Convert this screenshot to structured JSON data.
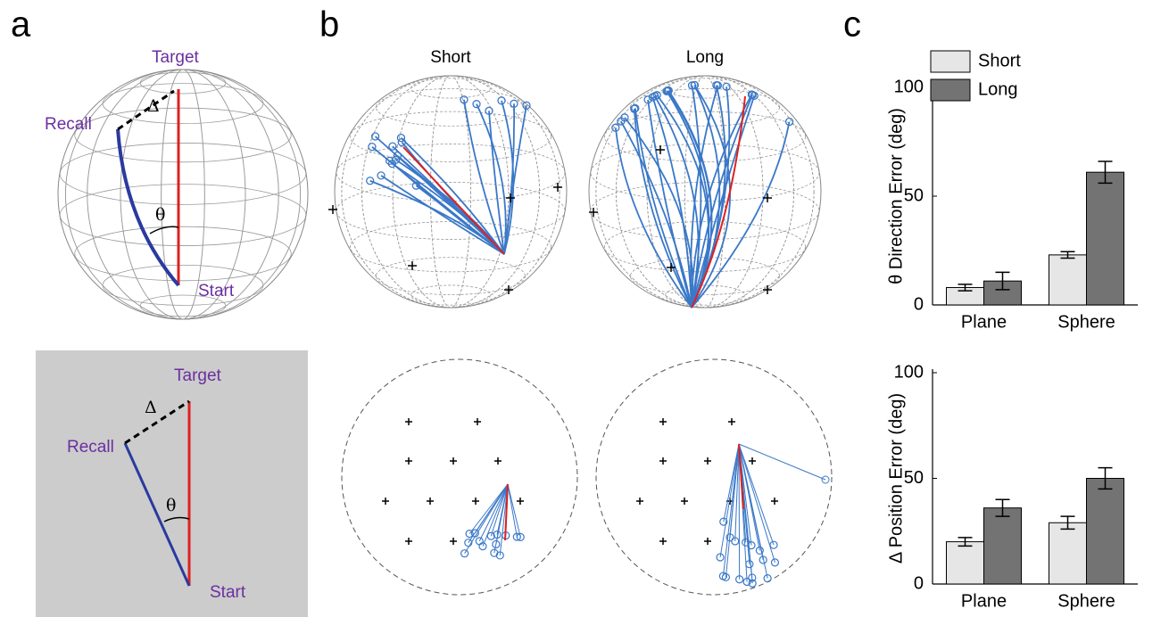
{
  "panels": {
    "a": {
      "label": "a",
      "sphere": {
        "target": "Target",
        "recall": "Recall",
        "start": "Start",
        "delta": "Δ",
        "theta": "θ"
      },
      "plane": {
        "target": "Target",
        "recall": "Recall",
        "start": "Start",
        "delta": "Δ",
        "theta": "θ"
      }
    },
    "b": {
      "label": "b",
      "titles": [
        "Short",
        "Long"
      ]
    },
    "c": {
      "label": "c"
    }
  },
  "chart_data": [
    {
      "type": "bar",
      "ylabel": "θ Direction Error (deg)",
      "categories": [
        "Plane",
        "Sphere"
      ],
      "series": [
        {
          "name": "Short",
          "color": "#e6e6e6",
          "values": [
            8,
            23
          ],
          "errors": [
            1.5,
            1.5
          ]
        },
        {
          "name": "Long",
          "color": "#737373",
          "values": [
            11,
            61
          ],
          "errors": [
            4,
            5
          ]
        }
      ],
      "ylim": [
        0,
        100
      ],
      "yticks": [
        0,
        50,
        100
      ],
      "legend": "top-left"
    },
    {
      "type": "bar",
      "ylabel": "Δ Position Error (deg)",
      "categories": [
        "Plane",
        "Sphere"
      ],
      "series": [
        {
          "name": "Short",
          "color": "#e6e6e6",
          "values": [
            20,
            29
          ],
          "errors": [
            2,
            3
          ]
        },
        {
          "name": "Long",
          "color": "#737373",
          "values": [
            36,
            50
          ],
          "errors": [
            4,
            5
          ]
        }
      ],
      "ylim": [
        0,
        100
      ],
      "yticks": [
        0,
        50,
        100
      ]
    }
  ]
}
